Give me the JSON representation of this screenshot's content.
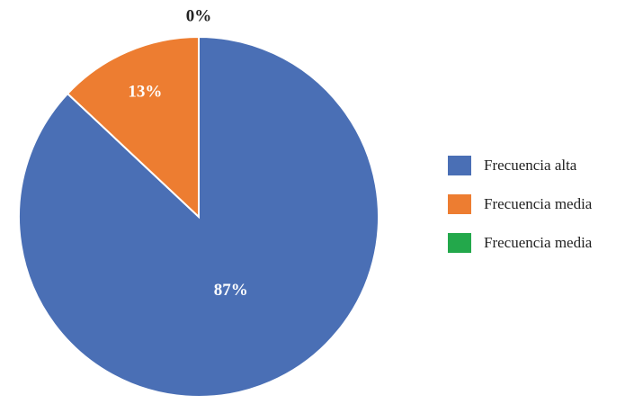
{
  "chart_data": {
    "type": "pie",
    "categories": [
      "Frecuencia alta",
      "Frecuencia media",
      "Frecuencia media"
    ],
    "values": [
      87,
      13,
      0
    ],
    "value_labels": [
      "87%",
      "13%",
      "0%"
    ],
    "colors": [
      "#4a6fb5",
      "#ed7d31",
      "#23a84b"
    ],
    "legend": "right"
  }
}
